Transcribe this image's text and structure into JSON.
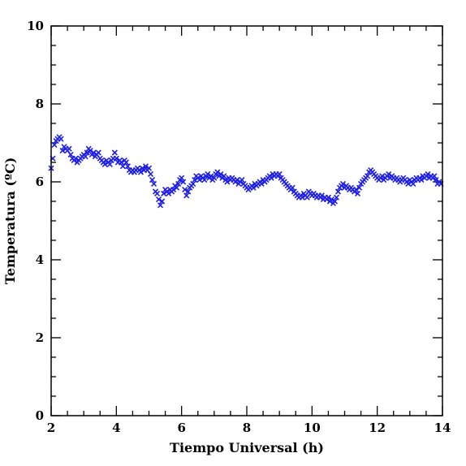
{
  "chart_data": {
    "type": "scatter",
    "xlabel": "Tiempo Universal (h)",
    "ylabel": "Temperatura (ºC)",
    "xlim": [
      2,
      14
    ],
    "ylim": [
      0,
      10
    ],
    "x_ticks": [
      "2",
      "4",
      "6",
      "8",
      "10",
      "12",
      "14"
    ],
    "y_ticks": [
      "0",
      "2",
      "4",
      "6",
      "8",
      "10"
    ],
    "marker": "x",
    "marker_color": "#1f1fe6",
    "axis_color": "#000000",
    "series": [
      {
        "points": [
          [
            2.0,
            6.35
          ],
          [
            2.05,
            6.6
          ],
          [
            2.1,
            6.95
          ],
          [
            2.15,
            7.05
          ],
          [
            2.2,
            7.1
          ],
          [
            2.25,
            7.15
          ],
          [
            2.3,
            7.1
          ],
          [
            2.35,
            6.8
          ],
          [
            2.4,
            6.9
          ],
          [
            2.45,
            6.85
          ],
          [
            2.5,
            6.8
          ],
          [
            2.55,
            6.85
          ],
          [
            2.6,
            6.7
          ],
          [
            2.65,
            6.6
          ],
          [
            2.7,
            6.55
          ],
          [
            2.75,
            6.6
          ],
          [
            2.8,
            6.5
          ],
          [
            2.85,
            6.55
          ],
          [
            2.9,
            6.6
          ],
          [
            2.95,
            6.65
          ],
          [
            3.0,
            6.7
          ],
          [
            3.05,
            6.65
          ],
          [
            3.1,
            6.75
          ],
          [
            3.15,
            6.85
          ],
          [
            3.2,
            6.8
          ],
          [
            3.25,
            6.7
          ],
          [
            3.3,
            6.75
          ],
          [
            3.35,
            6.65
          ],
          [
            3.4,
            6.7
          ],
          [
            3.45,
            6.75
          ],
          [
            3.5,
            6.6
          ],
          [
            3.55,
            6.55
          ],
          [
            3.6,
            6.5
          ],
          [
            3.65,
            6.45
          ],
          [
            3.7,
            6.55
          ],
          [
            3.75,
            6.5
          ],
          [
            3.8,
            6.45
          ],
          [
            3.85,
            6.55
          ],
          [
            3.9,
            6.6
          ],
          [
            3.95,
            6.75
          ],
          [
            4.0,
            6.6
          ],
          [
            4.05,
            6.5
          ],
          [
            4.1,
            6.55
          ],
          [
            4.15,
            6.5
          ],
          [
            4.2,
            6.4
          ],
          [
            4.25,
            6.55
          ],
          [
            4.3,
            6.5
          ],
          [
            4.35,
            6.4
          ],
          [
            4.4,
            6.3
          ],
          [
            4.45,
            6.25
          ],
          [
            4.5,
            6.3
          ],
          [
            4.55,
            6.25
          ],
          [
            4.6,
            6.3
          ],
          [
            4.65,
            6.35
          ],
          [
            4.7,
            6.3
          ],
          [
            4.75,
            6.25
          ],
          [
            4.8,
            6.35
          ],
          [
            4.85,
            6.3
          ],
          [
            4.9,
            6.4
          ],
          [
            4.95,
            6.3
          ],
          [
            5.0,
            6.35
          ],
          [
            5.05,
            6.2
          ],
          [
            5.1,
            6.05
          ],
          [
            5.15,
            5.95
          ],
          [
            5.2,
            5.75
          ],
          [
            5.25,
            5.7
          ],
          [
            5.3,
            5.55
          ],
          [
            5.35,
            5.4
          ],
          [
            5.4,
            5.5
          ],
          [
            5.45,
            5.7
          ],
          [
            5.5,
            5.8
          ],
          [
            5.55,
            5.75
          ],
          [
            5.6,
            5.7
          ],
          [
            5.65,
            5.8
          ],
          [
            5.7,
            5.75
          ],
          [
            5.75,
            5.8
          ],
          [
            5.8,
            5.9
          ],
          [
            5.85,
            5.85
          ],
          [
            5.9,
            5.95
          ],
          [
            5.95,
            6.05
          ],
          [
            6.0,
            6.1
          ],
          [
            6.05,
            6.0
          ],
          [
            6.1,
            5.8
          ],
          [
            6.15,
            5.65
          ],
          [
            6.2,
            5.75
          ],
          [
            6.25,
            5.85
          ],
          [
            6.3,
            5.9
          ],
          [
            6.35,
            5.95
          ],
          [
            6.4,
            6.05
          ],
          [
            6.45,
            6.15
          ],
          [
            6.5,
            6.1
          ],
          [
            6.55,
            6.05
          ],
          [
            6.6,
            6.15
          ],
          [
            6.65,
            6.1
          ],
          [
            6.7,
            6.05
          ],
          [
            6.75,
            6.15
          ],
          [
            6.8,
            6.2
          ],
          [
            6.85,
            6.1
          ],
          [
            6.9,
            6.15
          ],
          [
            6.95,
            6.05
          ],
          [
            7.0,
            6.1
          ],
          [
            7.05,
            6.2
          ],
          [
            7.1,
            6.25
          ],
          [
            7.15,
            6.15
          ],
          [
            7.2,
            6.2
          ],
          [
            7.25,
            6.1
          ],
          [
            7.3,
            6.15
          ],
          [
            7.35,
            6.05
          ],
          [
            7.4,
            6.0
          ],
          [
            7.45,
            6.1
          ],
          [
            7.5,
            6.05
          ],
          [
            7.55,
            6.1
          ],
          [
            7.6,
            6.05
          ],
          [
            7.65,
            6.0
          ],
          [
            7.7,
            6.05
          ],
          [
            7.75,
            5.95
          ],
          [
            7.8,
            6.0
          ],
          [
            7.85,
            6.05
          ],
          [
            7.9,
            5.95
          ],
          [
            7.95,
            5.9
          ],
          [
            8.0,
            5.85
          ],
          [
            8.05,
            5.8
          ],
          [
            8.1,
            5.85
          ],
          [
            8.15,
            5.9
          ],
          [
            8.2,
            5.85
          ],
          [
            8.25,
            5.95
          ],
          [
            8.3,
            5.9
          ],
          [
            8.35,
            5.95
          ],
          [
            8.4,
            6.0
          ],
          [
            8.45,
            5.95
          ],
          [
            8.5,
            6.05
          ],
          [
            8.55,
            6.0
          ],
          [
            8.6,
            6.05
          ],
          [
            8.65,
            6.1
          ],
          [
            8.7,
            6.15
          ],
          [
            8.75,
            6.1
          ],
          [
            8.8,
            6.2
          ],
          [
            8.85,
            6.15
          ],
          [
            8.9,
            6.2
          ],
          [
            8.95,
            6.15
          ],
          [
            9.0,
            6.2
          ],
          [
            9.05,
            6.1
          ],
          [
            9.1,
            6.05
          ],
          [
            9.15,
            6.0
          ],
          [
            9.2,
            5.95
          ],
          [
            9.25,
            5.9
          ],
          [
            9.3,
            5.85
          ],
          [
            9.35,
            5.8
          ],
          [
            9.4,
            5.85
          ],
          [
            9.45,
            5.75
          ],
          [
            9.5,
            5.7
          ],
          [
            9.55,
            5.65
          ],
          [
            9.6,
            5.6
          ],
          [
            9.65,
            5.65
          ],
          [
            9.7,
            5.6
          ],
          [
            9.75,
            5.7
          ],
          [
            9.8,
            5.65
          ],
          [
            9.85,
            5.6
          ],
          [
            9.9,
            5.75
          ],
          [
            9.95,
            5.7
          ],
          [
            10.0,
            5.65
          ],
          [
            10.05,
            5.7
          ],
          [
            10.1,
            5.65
          ],
          [
            10.15,
            5.6
          ],
          [
            10.2,
            5.65
          ],
          [
            10.25,
            5.6
          ],
          [
            10.3,
            5.65
          ],
          [
            10.35,
            5.55
          ],
          [
            10.4,
            5.6
          ],
          [
            10.45,
            5.55
          ],
          [
            10.5,
            5.6
          ],
          [
            10.55,
            5.5
          ],
          [
            10.6,
            5.55
          ],
          [
            10.65,
            5.45
          ],
          [
            10.7,
            5.5
          ],
          [
            10.75,
            5.6
          ],
          [
            10.8,
            5.75
          ],
          [
            10.85,
            5.85
          ],
          [
            10.9,
            5.9
          ],
          [
            10.95,
            5.95
          ],
          [
            11.0,
            5.85
          ],
          [
            11.05,
            5.9
          ],
          [
            11.1,
            5.85
          ],
          [
            11.15,
            5.8
          ],
          [
            11.2,
            5.85
          ],
          [
            11.25,
            5.8
          ],
          [
            11.3,
            5.75
          ],
          [
            11.35,
            5.8
          ],
          [
            11.4,
            5.7
          ],
          [
            11.45,
            5.85
          ],
          [
            11.5,
            5.95
          ],
          [
            11.55,
            6.0
          ],
          [
            11.6,
            6.05
          ],
          [
            11.65,
            6.1
          ],
          [
            11.7,
            6.15
          ],
          [
            11.75,
            6.25
          ],
          [
            11.8,
            6.3
          ],
          [
            11.85,
            6.25
          ],
          [
            11.9,
            6.2
          ],
          [
            11.95,
            6.15
          ],
          [
            12.0,
            6.1
          ],
          [
            12.05,
            6.05
          ],
          [
            12.1,
            6.1
          ],
          [
            12.15,
            6.15
          ],
          [
            12.2,
            6.05
          ],
          [
            12.25,
            6.1
          ],
          [
            12.3,
            6.15
          ],
          [
            12.35,
            6.2
          ],
          [
            12.4,
            6.1
          ],
          [
            12.45,
            6.15
          ],
          [
            12.5,
            6.1
          ],
          [
            12.55,
            6.05
          ],
          [
            12.6,
            6.1
          ],
          [
            12.65,
            6.05
          ],
          [
            12.7,
            6.0
          ],
          [
            12.75,
            6.05
          ],
          [
            12.8,
            6.1
          ],
          [
            12.85,
            6.05
          ],
          [
            12.9,
            6.0
          ],
          [
            12.95,
            5.95
          ],
          [
            13.0,
            6.05
          ],
          [
            13.05,
            6.0
          ],
          [
            13.1,
            5.95
          ],
          [
            13.15,
            6.05
          ],
          [
            13.2,
            6.1
          ],
          [
            13.25,
            6.05
          ],
          [
            13.3,
            6.1
          ],
          [
            13.35,
            6.05
          ],
          [
            13.4,
            6.15
          ],
          [
            13.45,
            6.1
          ],
          [
            13.5,
            6.15
          ],
          [
            13.55,
            6.2
          ],
          [
            13.6,
            6.1
          ],
          [
            13.65,
            6.15
          ],
          [
            13.7,
            6.1
          ],
          [
            13.75,
            6.15
          ],
          [
            13.8,
            6.05
          ],
          [
            13.85,
            5.95
          ],
          [
            13.9,
            6.0
          ],
          [
            13.95,
            5.95
          ]
        ]
      }
    ]
  }
}
